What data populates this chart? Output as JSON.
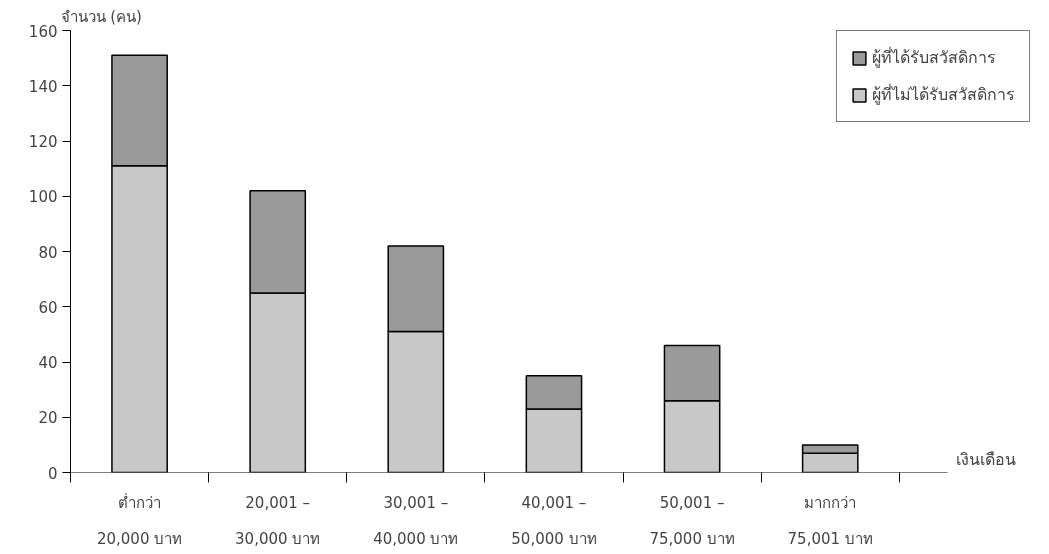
{
  "chart_data": {
    "type": "bar",
    "stacked": true,
    "ylabel": "จำนวน (คน)",
    "xlabel": "เงินเดือน",
    "categories": [
      "ต่ำกว่า\n20,000 บาท",
      "20,001 –\n30,000 บาท",
      "30,001 –\n40,000 บาท",
      "40,001 –\n50,000 บาท",
      "50,001 –\n75,000 บาท",
      "มากกว่า\n75,001 บาท"
    ],
    "series": [
      {
        "name": "ผู้ที่ไม่ได้รับสวัสดิการ",
        "color": "#c8c8c8",
        "values": [
          111,
          65,
          51,
          23,
          26,
          7
        ]
      },
      {
        "name": "ผู้ที่ได้รับสวัสดิการ",
        "color": "#9a9a9a",
        "values": [
          40,
          37,
          31,
          12,
          20,
          3
        ]
      }
    ],
    "ylim": [
      0,
      160
    ],
    "yticks": [
      0,
      20,
      40,
      60,
      80,
      100,
      120,
      140,
      160
    ],
    "grid": false,
    "legend": "top right"
  }
}
